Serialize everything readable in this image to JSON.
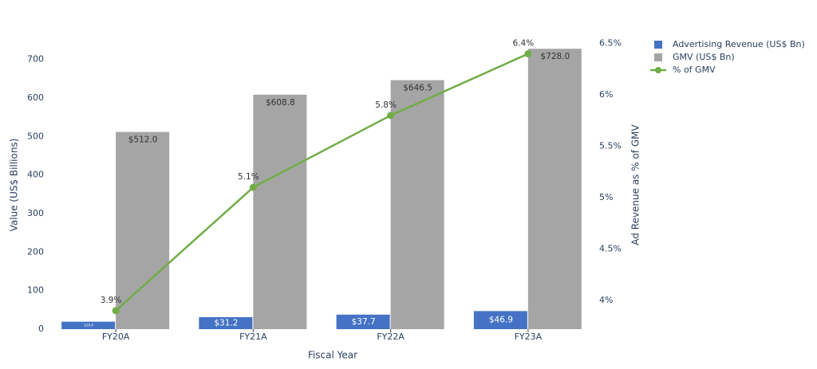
{
  "chart_data": {
    "type": "bar_line",
    "categories": [
      "FY20A",
      "FY21A",
      "FY22A",
      "FY23A"
    ],
    "x_label": "Fiscal Year",
    "y_label": "Value (US$ Billions)",
    "y2_label": "Ad Revenue as % of GMV",
    "ylim": [
      0,
      747
    ],
    "yticks": [
      0,
      100,
      200,
      300,
      400,
      500,
      600,
      700
    ],
    "y2lim": [
      3.72,
      6.52
    ],
    "y2ticks": [
      {
        "value": 4,
        "label": "4%"
      },
      {
        "value": 4.5,
        "label": "4.5%"
      },
      {
        "value": 5,
        "label": "5%"
      },
      {
        "value": 5.5,
        "label": "5.5%"
      },
      {
        "value": 6,
        "label": "6%"
      },
      {
        "value": 6.5,
        "label": "6.5%"
      }
    ],
    "grid": false,
    "legend": "top-right",
    "series": [
      {
        "name": "Advertising Revenue (US$ Bn)",
        "type": "bar",
        "color": "#4472c4",
        "values": [
          19.4,
          31.2,
          37.7,
          46.9
        ],
        "value_labels": [
          "$19.4",
          "$31.2",
          "$37.7",
          "$46.9"
        ]
      },
      {
        "name": "GMV (US$ Bn)",
        "type": "bar",
        "color": "#a5a5a5",
        "values": [
          512.0,
          608.8,
          646.5,
          728.0
        ],
        "value_labels": [
          "$512.0",
          "$608.8",
          "$646.5",
          "$728.0"
        ]
      },
      {
        "name": "% of GMV",
        "type": "line",
        "axis": "y2",
        "color": "#70ad47",
        "values": [
          3.9,
          5.1,
          5.8,
          6.4
        ],
        "value_labels": [
          "3.9%",
          "5.1%",
          "5.8%",
          "6.4%"
        ]
      }
    ]
  }
}
